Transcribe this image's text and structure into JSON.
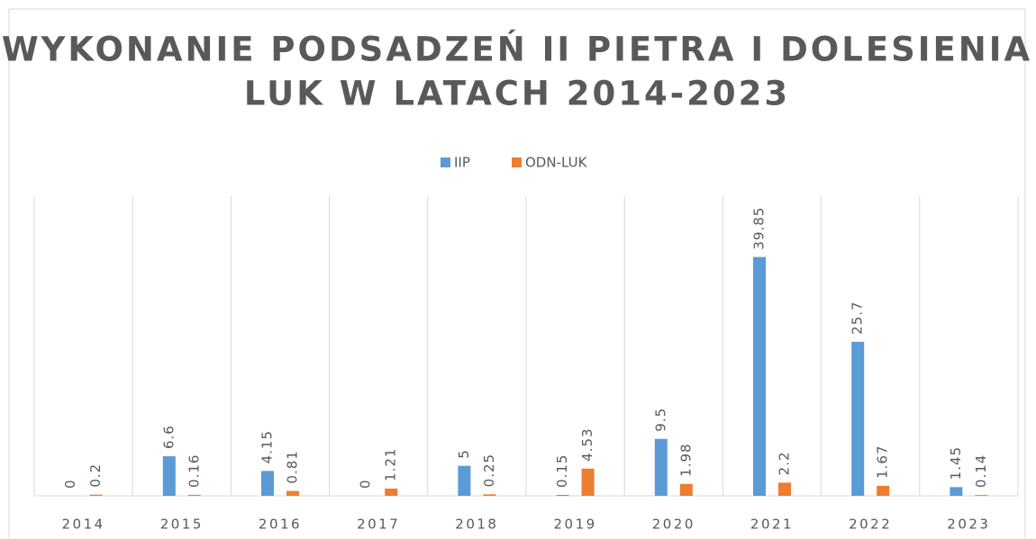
{
  "chart_data": {
    "type": "bar",
    "title": [
      "WYKONANIE PODSADZEŃ II PIETRA I DOLESIENIA",
      "LUK W LATACH 2014-2023"
    ],
    "categories": [
      "2014",
      "2015",
      "2016",
      "2017",
      "2018",
      "2019",
      "2020",
      "2021",
      "2022",
      "2023"
    ],
    "series": [
      {
        "name": "IIP",
        "color": "#5b9bd5",
        "values": [
          0,
          6.6,
          4.15,
          0,
          5,
          0.15,
          9.5,
          39.85,
          25.7,
          1.45
        ]
      },
      {
        "name": "ODN-LUK",
        "color": "#ed7d31",
        "values": [
          0.2,
          0.16,
          0.81,
          1.21,
          0.25,
          4.53,
          1.98,
          2.2,
          1.67,
          0.14
        ]
      }
    ],
    "ylim": [
      0,
      50
    ],
    "legend": "top"
  }
}
